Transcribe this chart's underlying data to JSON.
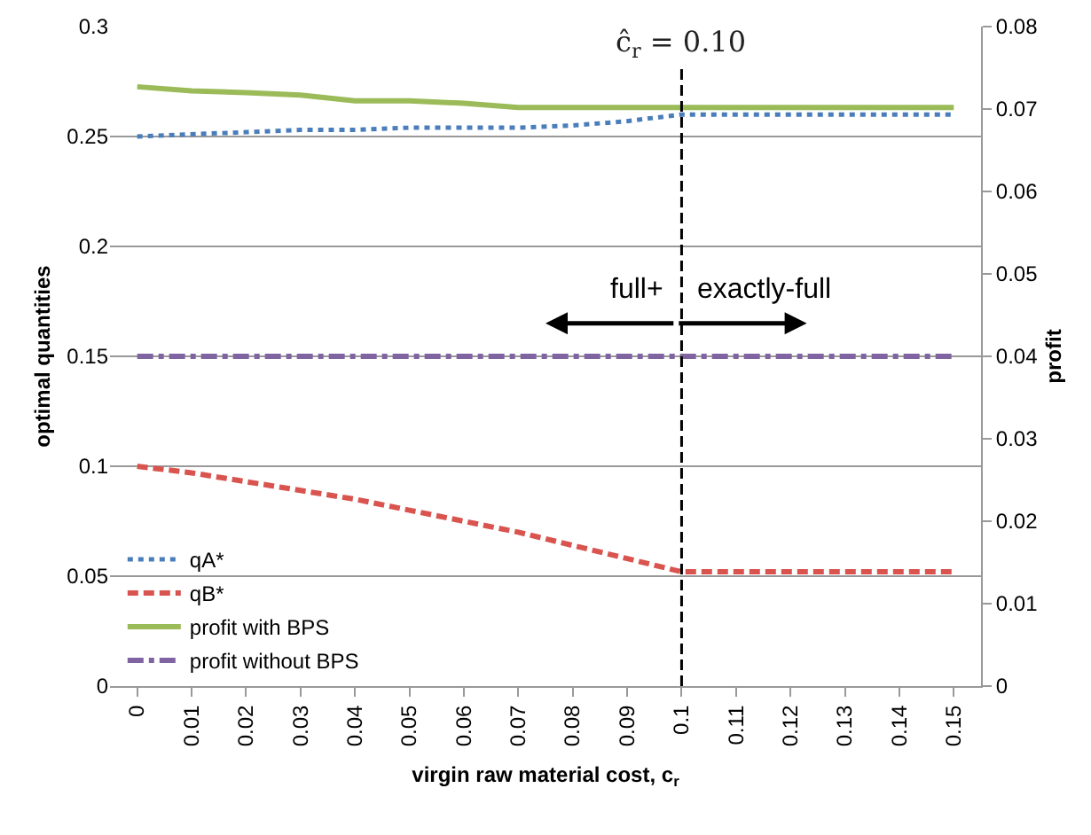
{
  "chart_data": {
    "type": "line",
    "x": [
      0,
      0.01,
      0.02,
      0.03,
      0.04,
      0.05,
      0.06,
      0.07,
      0.08,
      0.09,
      0.1,
      0.11,
      0.12,
      0.13,
      0.14,
      0.15
    ],
    "series": [
      {
        "name": "qA*",
        "color": "#4a7ebb",
        "line_style": "dotted",
        "values": [
          0.25,
          0.251,
          0.252,
          0.253,
          0.253,
          0.254,
          0.254,
          0.254,
          0.255,
          0.257,
          0.26,
          0.26,
          0.26,
          0.26,
          0.26,
          0.26
        ]
      },
      {
        "name": "qB*",
        "color": "#d9544f",
        "line_style": "dashed",
        "values": [
          0.1,
          0.097,
          0.093,
          0.089,
          0.085,
          0.08,
          0.075,
          0.07,
          0.064,
          0.058,
          0.052,
          0.052,
          0.052,
          0.052,
          0.052,
          0.052
        ]
      },
      {
        "name": "profit with BPS",
        "color": "#9bbb59",
        "line_style": "solid",
        "axis": "y2",
        "values": [
          0.0727,
          0.0722,
          0.072,
          0.0717,
          0.071,
          0.071,
          0.0707,
          0.0702,
          0.0702,
          0.0702,
          0.0702,
          0.0702,
          0.0702,
          0.0702,
          0.0702,
          0.0702
        ]
      },
      {
        "name": "profit without BPS",
        "color": "#8064a2",
        "line_style": "dashdot",
        "axis": "y2",
        "values": [
          0.04,
          0.04,
          0.04,
          0.04,
          0.04,
          0.04,
          0.04,
          0.04,
          0.04,
          0.04,
          0.04,
          0.04,
          0.04,
          0.04,
          0.04,
          0.04
        ]
      }
    ],
    "xlabel": "virgin raw material cost, c$_{r}$",
    "ylabel": "optimal quantities",
    "y2label": "profit",
    "xlim": [
      -0.005,
      0.155
    ],
    "xticks": [
      0,
      0.01,
      0.02,
      0.03,
      0.04,
      0.05,
      0.06,
      0.07,
      0.08,
      0.09,
      0.1,
      0.11,
      0.12,
      0.13,
      0.14,
      0.15
    ],
    "ylim": [
      0,
      0.3
    ],
    "yticks": [
      0,
      0.05,
      0.1,
      0.15,
      0.2,
      0.25,
      0.3
    ],
    "y2lim": [
      0,
      0.08
    ],
    "y2ticks": [
      0,
      0.01,
      0.02,
      0.03,
      0.04,
      0.05,
      0.06,
      0.07,
      0.08
    ],
    "ref_lines": [
      {
        "axis": "x",
        "value": 0.1,
        "label": "ĉ$_{r}$ = 0.10",
        "color": "#000000",
        "line_style": "dashed"
      }
    ],
    "annotations": [
      "full+",
      "exactly-full"
    ],
    "grid": "y",
    "legend": "bottom left",
    "marker": "none"
  }
}
